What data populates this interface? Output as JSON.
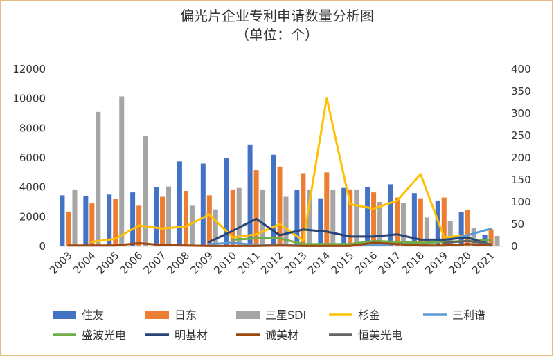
{
  "chart_data": {
    "type": "bar",
    "title": "偏光片企业专利申请数量分析图",
    "subtitle": "（单位：个）",
    "categories": [
      "2003",
      "2004",
      "2005",
      "2006",
      "2007",
      "2008",
      "2009",
      "2010",
      "2011",
      "2012",
      "2013",
      "2014",
      "2015",
      "2016",
      "2017",
      "2018",
      "2019",
      "2020",
      "2021"
    ],
    "ylim_left": [
      0,
      12000
    ],
    "yticks_left": [
      0,
      2000,
      4000,
      6000,
      8000,
      10000,
      12000
    ],
    "ylim_right": [
      0,
      400
    ],
    "yticks_right": [
      0,
      50,
      100,
      150,
      200,
      250,
      300,
      350,
      400
    ],
    "legend_position": "bottom",
    "bar_series": [
      {
        "name": "住友",
        "color": "#4472c4",
        "axis": "left",
        "values": [
          3450,
          3400,
          3500,
          3650,
          4000,
          5750,
          5600,
          6000,
          6900,
          6200,
          3800,
          3250,
          3950,
          4000,
          4200,
          3600,
          3100,
          2300,
          800
        ]
      },
      {
        "name": "日东",
        "color": "#ed7d31",
        "axis": "left",
        "values": [
          2350,
          2900,
          3200,
          2750,
          3350,
          3750,
          3450,
          3850,
          5150,
          5400,
          4950,
          5000,
          3850,
          3650,
          3300,
          3250,
          3300,
          2450,
          1150
        ]
      },
      {
        "name": "三星SDI",
        "color": "#a5a5a5",
        "axis": "left",
        "values": [
          3850,
          9100,
          10150,
          7450,
          4050,
          2750,
          2500,
          3950,
          3850,
          3350,
          3850,
          3800,
          3850,
          3000,
          2950,
          1950,
          1700,
          1250,
          700
        ]
      }
    ],
    "line_series": [
      {
        "name": "杉金",
        "color": "#ffc000",
        "axis": "right",
        "values": [
          null,
          10,
          17,
          47,
          40,
          45,
          72,
          20,
          27,
          50,
          13,
          335,
          95,
          85,
          103,
          163,
          20,
          25,
          null
        ]
      },
      {
        "name": "三利谱",
        "color": "#5b9bd5",
        "axis": "right",
        "values": [
          null,
          null,
          null,
          null,
          null,
          null,
          5,
          8,
          3,
          4,
          3,
          2,
          2,
          3,
          5,
          5,
          12,
          25,
          40
        ]
      },
      {
        "name": "盛波光电",
        "color": "#70ad47",
        "axis": "right",
        "values": [
          null,
          null,
          null,
          null,
          null,
          null,
          null,
          15,
          18,
          18,
          5,
          5,
          5,
          12,
          10,
          8,
          10,
          12,
          14
        ]
      },
      {
        "name": "明基材",
        "color": "#264478",
        "axis": "right",
        "values": [
          null,
          null,
          null,
          null,
          null,
          null,
          10,
          35,
          62,
          25,
          38,
          33,
          22,
          22,
          27,
          15,
          15,
          20,
          3
        ]
      },
      {
        "name": "诚美材",
        "color": "#9e480e",
        "axis": "right",
        "values": [
          2,
          2,
          2,
          7,
          3,
          2,
          1,
          1,
          1,
          2,
          1,
          1,
          1,
          8,
          5,
          2,
          2,
          5,
          2
        ]
      },
      {
        "name": "恒美光电",
        "color": "#636363",
        "axis": "right",
        "values": [
          null,
          null,
          null,
          null,
          null,
          null,
          null,
          null,
          null,
          null,
          null,
          null,
          null,
          null,
          null,
          null,
          8,
          12,
          5
        ]
      }
    ],
    "legend": [
      "住友",
      "日东",
      "三星SDI",
      "杉金",
      "三利谱",
      "盛波光电",
      "明基材",
      "诚美材",
      "恒美光电"
    ]
  }
}
